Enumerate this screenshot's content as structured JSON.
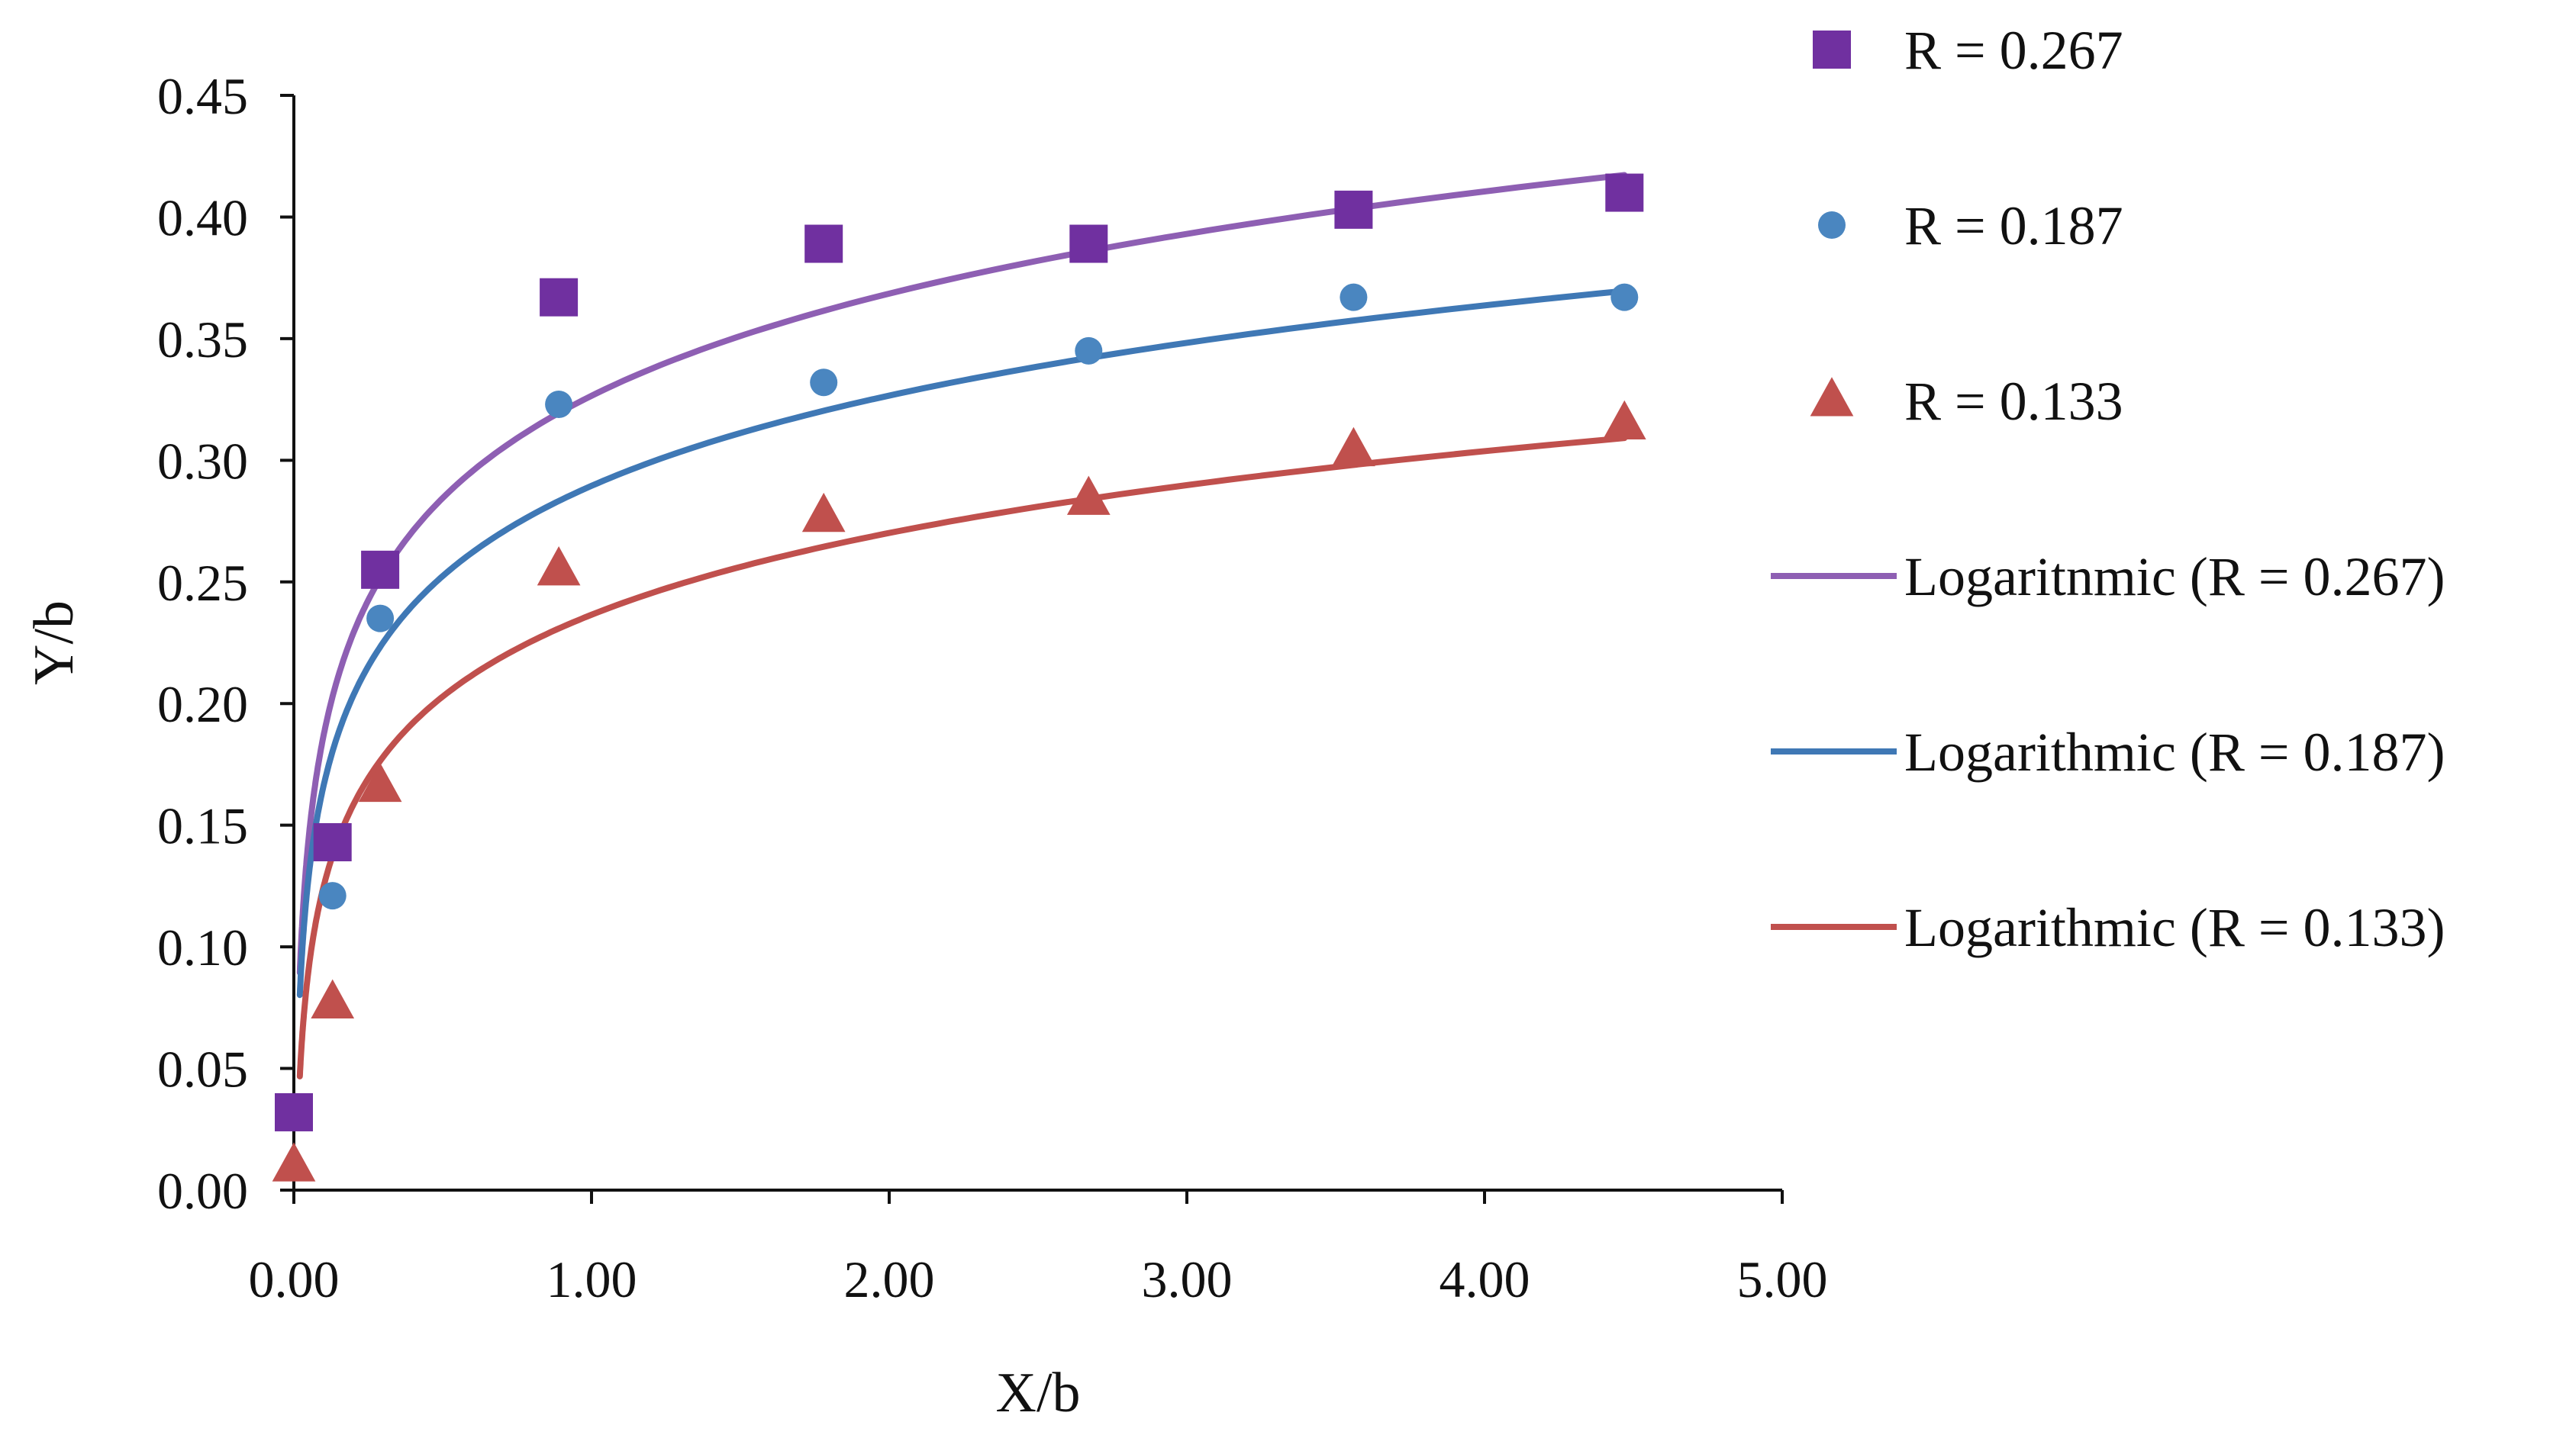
{
  "chart_data": {
    "type": "scatter",
    "title": "",
    "xlabel": "X/b",
    "ylabel": "Y/b",
    "xlim": [
      0,
      5
    ],
    "ylim": [
      0,
      0.45
    ],
    "x_ticks": [
      "0.00",
      "1.00",
      "2.00",
      "3.00",
      "4.00",
      "5.00"
    ],
    "y_ticks": [
      "0.00",
      "0.05",
      "0.10",
      "0.15",
      "0.20",
      "0.25",
      "0.30",
      "0.35",
      "0.40",
      "0.45"
    ],
    "grid": false,
    "legend_position": "right",
    "series": [
      {
        "name": "R = 0.267",
        "marker": "square",
        "color": "#7030A0",
        "x": [
          0.0,
          0.13,
          0.29,
          0.89,
          1.78,
          2.67,
          3.56,
          4.47
        ],
        "y": [
          0.032,
          0.143,
          0.255,
          0.367,
          0.389,
          0.389,
          0.403,
          0.41
        ]
      },
      {
        "name": "R = 0.187",
        "marker": "circle",
        "color": "#4A86C0",
        "x": [
          0.0,
          0.13,
          0.29,
          0.89,
          1.78,
          2.67,
          3.56,
          4.47
        ],
        "y": [
          0.032,
          0.121,
          0.235,
          0.323,
          0.332,
          0.345,
          0.367,
          0.367
        ]
      },
      {
        "name": "R = 0.133",
        "marker": "triangle",
        "color": "#C0504D",
        "x": [
          0.0,
          0.13,
          0.29,
          0.89,
          1.78,
          2.67,
          3.56,
          4.47
        ],
        "y": [
          0.01,
          0.077,
          0.166,
          0.255,
          0.277,
          0.284,
          0.304,
          0.315
        ]
      }
    ],
    "trendlines": [
      {
        "name": "Logaritnmic (R = 0.267)",
        "color": "#8E5FB3",
        "type": "logarithmic",
        "a": 0.3265,
        "b": 0.0606,
        "x_start": 0.02,
        "x_end": 4.47
      },
      {
        "name": "Logarithmic (R = 0.187)",
        "color": "#3F78B5",
        "type": "logarithmic",
        "a": 0.2895,
        "b": 0.0535,
        "x_start": 0.02,
        "x_end": 4.47
      },
      {
        "name": "Logarithmic (R = 0.133)",
        "color": "#C0504D",
        "type": "logarithmic",
        "a": 0.2365,
        "b": 0.0485,
        "x_start": 0.02,
        "x_end": 4.47
      }
    ]
  }
}
